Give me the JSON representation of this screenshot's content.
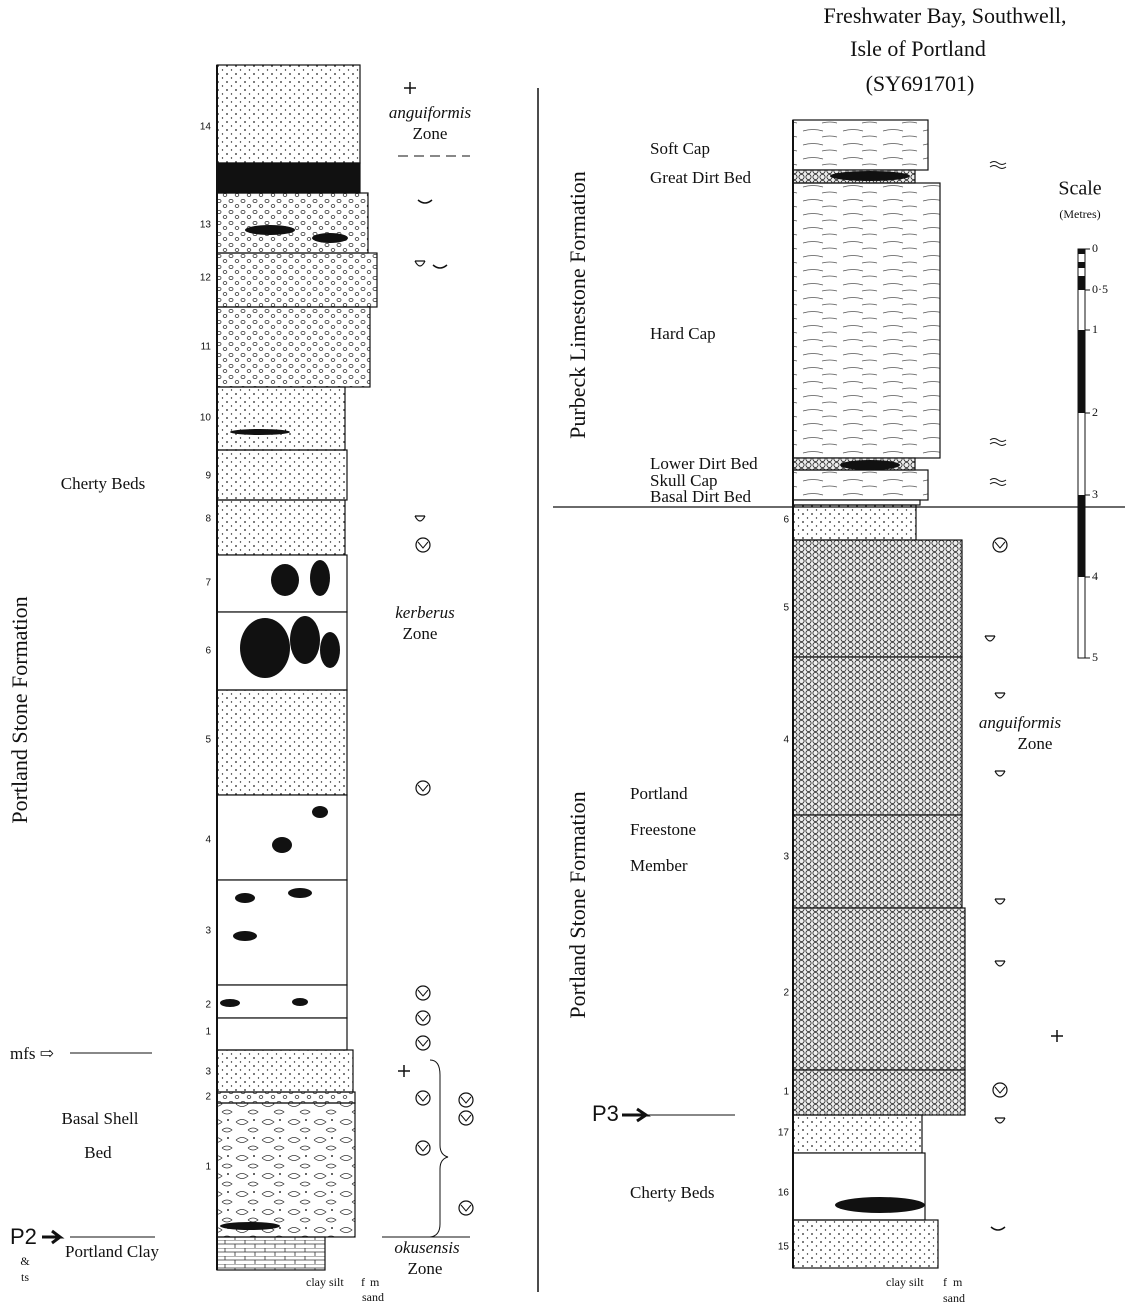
{
  "title": [
    "Freshwater Bay, Southwell,",
    "Isle of Portland",
    "(SY691701)"
  ],
  "left_section": {
    "formation": "Portland Stone Formation",
    "units": [
      "Cherty Beds",
      "Basal Shell",
      "Bed",
      "Portland Clay"
    ],
    "markers": [
      "mfs ⇨",
      "P2",
      "&",
      "ts"
    ],
    "zones": [
      {
        "name": "anguiformis",
        "label": "Zone"
      },
      {
        "name": "kerberus",
        "label": "Zone"
      },
      {
        "name": "okusensis",
        "label": "Zone"
      }
    ],
    "bed_numbers": [
      "14",
      "13",
      "12",
      "11",
      "10",
      "9",
      "8",
      "7",
      "6",
      "5",
      "4",
      "3",
      "2",
      "1",
      "3",
      "2",
      "1"
    ],
    "grain_size": [
      "clay silt",
      "f",
      "m",
      "sand"
    ]
  },
  "right_section": {
    "formations": [
      "Purbeck Limestone Formation",
      "Portland Stone Formation"
    ],
    "bed_labels": [
      "Soft Cap",
      "Great Dirt Bed",
      "Hard Cap",
      "Lower Dirt Bed",
      "Skull Cap",
      "Basal Dirt Bed"
    ],
    "units": [
      "Portland",
      "Freestone",
      "Member",
      "Cherty Beds"
    ],
    "marker": "P3",
    "zone": {
      "name": "anguiformis",
      "label": "Zone"
    },
    "bed_numbers": [
      "6",
      "5",
      "4",
      "3",
      "2",
      "1",
      "17",
      "16",
      "15"
    ],
    "grain_size": [
      "clay silt",
      "f",
      "m",
      "sand"
    ]
  },
  "scale": {
    "title": "Scale",
    "unit": "(Metres)",
    "ticks": [
      "0",
      "0·5",
      "1",
      "2",
      "3",
      "4",
      "5"
    ]
  }
}
